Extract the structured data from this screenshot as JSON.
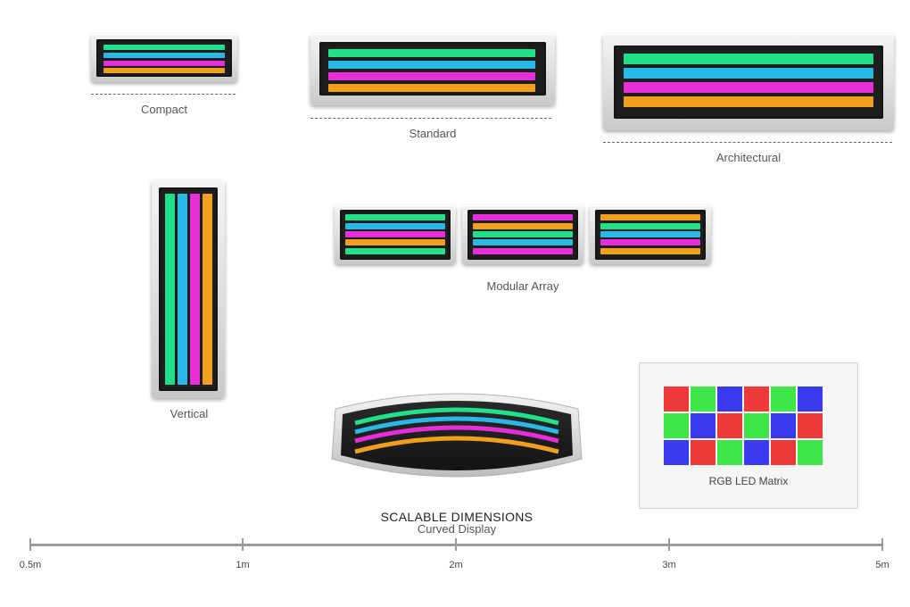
{
  "colors": {
    "green": "#22e08a",
    "cyan": "#2ab8e6",
    "magenta": "#e62fd6",
    "orange": "#f0a01e",
    "screen": "#1e1e1e",
    "matrix_red": "#f03a3a",
    "matrix_green": "#3ee64a",
    "matrix_blue": "#3a3af0"
  },
  "displays": {
    "compact": {
      "label": "Compact"
    },
    "standard": {
      "label": "Standard"
    },
    "architectural": {
      "label": "Architectural"
    },
    "vertical": {
      "label": "Vertical"
    },
    "modular": {
      "label": "Modular Array"
    },
    "curved": {
      "label": "Curved Display"
    }
  },
  "matrix": {
    "label": "RGB LED Matrix",
    "rows": [
      [
        "red",
        "green",
        "blue",
        "red",
        "green",
        "blue"
      ],
      [
        "green",
        "blue",
        "red",
        "green",
        "blue",
        "red"
      ],
      [
        "blue",
        "red",
        "green",
        "blue",
        "red",
        "green"
      ]
    ]
  },
  "scale": {
    "title": "SCALABLE DIMENSIONS",
    "ticks": [
      "0.5m",
      "1m",
      "2m",
      "3m",
      "5m"
    ]
  }
}
